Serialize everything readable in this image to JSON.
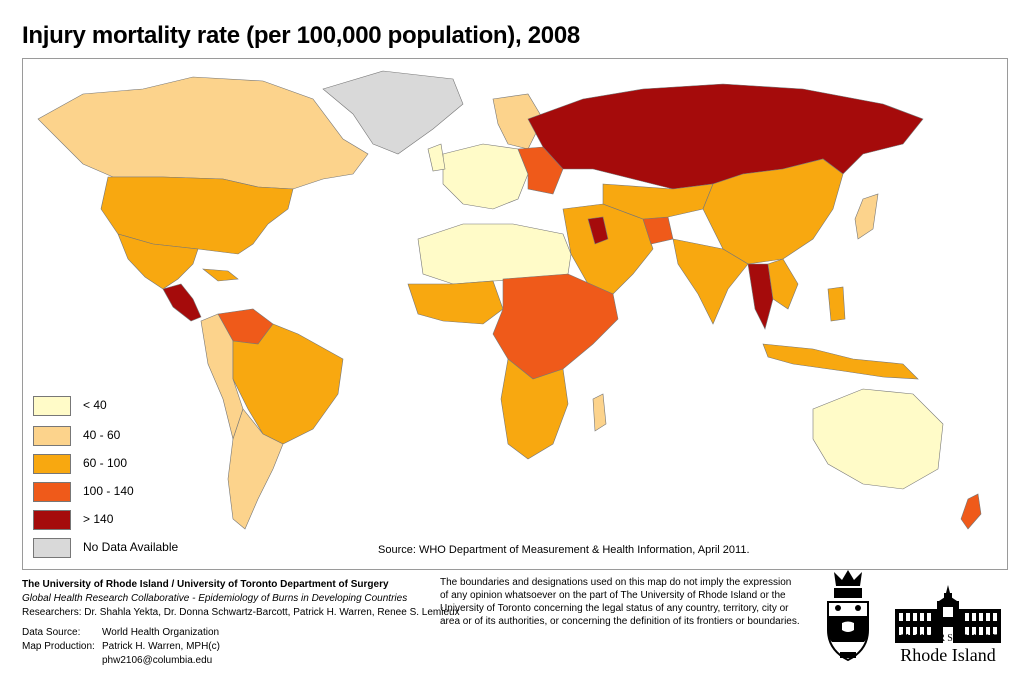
{
  "title": "Injury mortality rate (per 100,000 population), 2008",
  "legend": {
    "items": [
      {
        "label": "< 40",
        "color": "#fffbc8"
      },
      {
        "label": "40 - 60",
        "color": "#fcd38c"
      },
      {
        "label": "60 - 100",
        "color": "#f8a810"
      },
      {
        "label": "100 - 140",
        "color": "#ef5a1a"
      },
      {
        "label": "> 140",
        "color": "#a50b0b"
      },
      {
        "label": "No Data Available",
        "color": "#d9d9d9"
      }
    ]
  },
  "source": "Source: WHO Department of Measurement & Health Information, April 2011.",
  "footer": {
    "institution": "The University of Rhode Island / University of Toronto Department of Surgery",
    "collaborative": "Global Health Research Collaborative - Epidemiology of Burns in Developing Countries",
    "researchers": "Researchers: Dr. Shahla Yekta, Dr. Donna Schwartz-Barcott, Patrick H. Warren, Renee S. Lemieux",
    "data_source_label": "Data Source:",
    "data_source_value": "World Health Organization",
    "map_production_label": "Map Production:",
    "map_production_value": "Patrick H. Warren, MPH(c)",
    "email": "phw2106@columbia.edu"
  },
  "disclaimer": "The boundaries and designations used on this map do not imply the expression of any opinion whatsoever on the part of The University of Rhode Island or the University of Toronto concerning the legal status of any country, territory, city or area or of its authorities, or concerning the definition of its frontiers or boundaries.",
  "logos": {
    "uri_top": "UNIVERSITY OF",
    "uri_bottom": "Rhode Island"
  },
  "map_regions": [
    {
      "name": "Canada",
      "category": "40 - 60"
    },
    {
      "name": "Greenland",
      "category": "No Data Available"
    },
    {
      "name": "United States",
      "category": "60 - 100"
    },
    {
      "name": "Mexico",
      "category": "60 - 100"
    },
    {
      "name": "Central America",
      "category": "> 140"
    },
    {
      "name": "Venezuela",
      "category": "100 - 140"
    },
    {
      "name": "Brazil",
      "category": "60 - 100"
    },
    {
      "name": "Argentina",
      "category": "40 - 60"
    },
    {
      "name": "Western Europe",
      "category": "< 40"
    },
    {
      "name": "Russia",
      "category": "> 140"
    },
    {
      "name": "China",
      "category": "60 - 100"
    },
    {
      "name": "India",
      "category": "60 - 100"
    },
    {
      "name": "Myanmar",
      "category": "> 140"
    },
    {
      "name": "North Africa",
      "category": "< 40"
    },
    {
      "name": "Central Africa",
      "category": "100 - 140"
    },
    {
      "name": "Southern Africa",
      "category": "60 - 100"
    },
    {
      "name": "Australia",
      "category": "< 40"
    },
    {
      "name": "Indonesia",
      "category": "60 - 100"
    }
  ],
  "colors": {
    "ocean": "#ffffff",
    "border": "#8a8a8a"
  }
}
